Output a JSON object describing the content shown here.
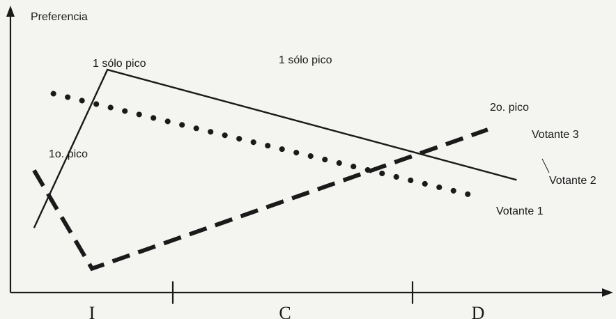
{
  "chart_data": {
    "type": "line",
    "ylabel": "Preferencia",
    "categories": [
      "I",
      "C",
      "D"
    ],
    "x_positions": [
      0,
      1,
      2
    ],
    "series": [
      {
        "name": "Votante 1",
        "style": "dotted",
        "x": [
          -0.2,
          2.0
        ],
        "y": [
          0.83,
          0.4
        ]
      },
      {
        "name": "Votante 2",
        "style": "solid",
        "x": [
          -0.3,
          0.08,
          2.2
        ],
        "y": [
          0.27,
          0.93,
          0.47
        ]
      },
      {
        "name": "Votante 3",
        "style": "dashed",
        "x": [
          -0.3,
          0.0,
          2.05
        ],
        "y": [
          0.51,
          0.1,
          0.68
        ]
      }
    ],
    "annotations": [
      {
        "text": "1 sólo pico",
        "series": "Votante 1"
      },
      {
        "text": "1 sólo pico",
        "series": "Votante 2"
      },
      {
        "text": "1o. pico",
        "series": "Votante 3"
      },
      {
        "text": "2o. pico",
        "series": "Votante 3"
      }
    ],
    "colors": {
      "ink": "#1a1a1a",
      "paper": "#f4f4f1"
    },
    "grid": false
  }
}
